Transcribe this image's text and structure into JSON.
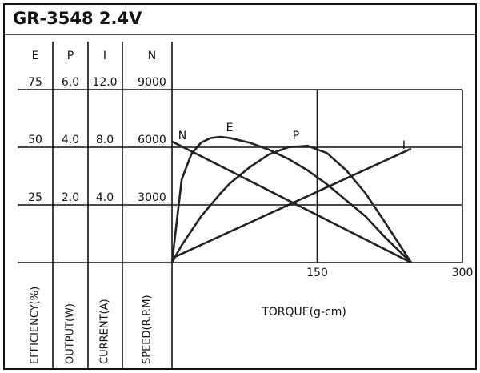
{
  "chart_data": {
    "type": "line",
    "title": "GR-3548 2.4V",
    "xlabel": "TORQUE(g-cm)",
    "xlim": [
      0,
      300
    ],
    "xticks": [
      150,
      300
    ],
    "grid": true,
    "color": "#222222",
    "axes": [
      {
        "name": "E",
        "label": "EFFICIENCY(%)",
        "ylim": [
          0,
          75
        ],
        "yticks": [
          25,
          50,
          75
        ]
      },
      {
        "name": "P",
        "label": "OUTPUT(W)",
        "ylim": [
          0,
          6
        ],
        "yticks": [
          {
            "value": 2,
            "label": "2.0"
          },
          {
            "value": 4,
            "label": "4.0"
          },
          {
            "value": 6,
            "label": "6.0"
          }
        ]
      },
      {
        "name": "I",
        "label": "CURRENT(A)",
        "ylim": [
          0,
          12
        ],
        "yticks": [
          {
            "value": 4,
            "label": "4.0"
          },
          {
            "value": 8,
            "label": "8.0"
          },
          {
            "value": 12,
            "label": "12.0"
          }
        ]
      },
      {
        "name": "N",
        "label": "SPEED(R.P.M)",
        "ylim": [
          0,
          9000
        ],
        "yticks": [
          3000,
          6000,
          9000
        ]
      }
    ],
    "series": [
      {
        "name": "N",
        "axis": 3,
        "x": [
          0,
          247
        ],
        "values": [
          6300,
          0
        ]
      },
      {
        "name": "E",
        "axis": 0,
        "x": [
          0,
          10,
          20,
          30,
          40,
          50,
          60,
          80,
          100,
          120,
          140,
          160,
          180,
          200,
          220,
          247
        ],
        "values": [
          0,
          36,
          47,
          52,
          54,
          54.5,
          54,
          52,
          49,
          45,
          40,
          34,
          27,
          20,
          11,
          0
        ]
      },
      {
        "name": "P",
        "axis": 1,
        "x": [
          0,
          10,
          20,
          30,
          40,
          50,
          60,
          80,
          100,
          120,
          140,
          160,
          180,
          200,
          220,
          247
        ],
        "values": [
          0,
          0.6,
          1.1,
          1.6,
          2.0,
          2.4,
          2.75,
          3.3,
          3.75,
          4.0,
          4.05,
          3.8,
          3.2,
          2.4,
          1.4,
          0
        ]
      },
      {
        "name": "I",
        "axis": 2,
        "x": [
          0,
          247
        ],
        "values": [
          0.3,
          7.9
        ]
      }
    ]
  }
}
